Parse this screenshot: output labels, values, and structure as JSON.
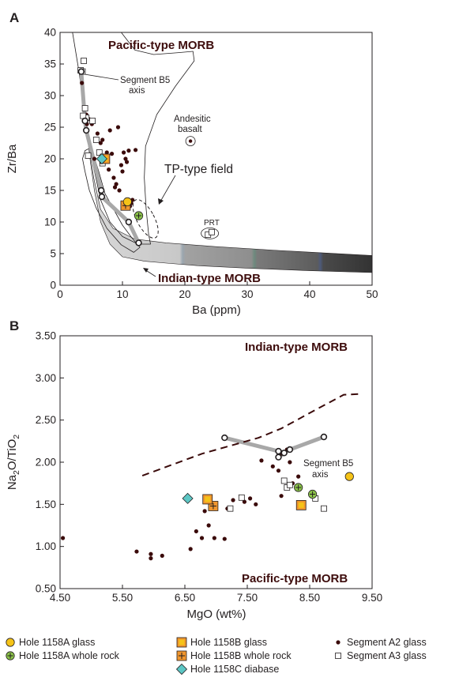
{
  "figure": {
    "panel_a_letter": "A",
    "panel_b_letter": "B"
  },
  "chart_data": [
    {
      "type": "scatter",
      "panel": "A",
      "xlabel": "Ba (ppm)",
      "ylabel": "Zr/Ba",
      "xlim": [
        0,
        50
      ],
      "ylim": [
        0,
        40
      ],
      "xticks": [
        "0",
        "10",
        "20",
        "30",
        "40",
        "50"
      ],
      "yticks": [
        "0",
        "5",
        "10",
        "15",
        "20",
        "25",
        "30",
        "35",
        "40"
      ],
      "grid": false,
      "annotations": {
        "pacific": "Pacific-type MORB",
        "indian": "Indian-type MORB",
        "tp": "TP-type field",
        "andesitic_1": "Andesitic",
        "andesitic_2": "basalt",
        "prt": "PRT",
        "axis_1": "Segment B5",
        "axis_2": "axis"
      },
      "series": [
        {
          "key": "a2",
          "x": [
            3.5,
            4.2,
            4.6,
            5.1,
            5.5,
            6.0,
            6.5,
            7.0,
            7.5,
            7.8,
            8.0,
            8.3,
            8.6,
            9.0,
            9.5,
            9.8,
            10.2,
            10.5,
            10.7,
            11.0,
            11.2,
            11.6,
            12.1,
            8.8,
            10.0,
            9.3,
            6.8,
            11.4,
            4.3,
            7.2
          ],
          "y": [
            32.0,
            27.0,
            26.3,
            25.5,
            20.0,
            24.0,
            22.5,
            20.5,
            21.0,
            18.3,
            24.5,
            20.8,
            17.0,
            16.0,
            15.0,
            19.0,
            21.0,
            20.0,
            19.5,
            21.3,
            12.5,
            13.5,
            21.4,
            15.5,
            18.0,
            25.0,
            23.0,
            13.0,
            25.5,
            19.5
          ]
        },
        {
          "key": "a3",
          "x": [
            3.3,
            3.6,
            3.8,
            4.0,
            4.2,
            4.5,
            5.2,
            5.8,
            6.3,
            6.8,
            3.7,
            23.7,
            24.3
          ],
          "y": [
            34.0,
            33.8,
            35.5,
            28.0,
            26.5,
            20.5,
            26.0,
            23.0,
            21.0,
            19.3,
            26.8,
            8.0,
            8.4
          ]
        },
        {
          "key": "a1158_glass",
          "x": [
            10.8
          ],
          "y": [
            13.2
          ]
        },
        {
          "key": "a1158_wr",
          "x": [
            12.6
          ],
          "y": [
            11.0
          ]
        },
        {
          "key": "b1158_glass",
          "x": [
            7.2
          ],
          "y": [
            20.0
          ]
        },
        {
          "key": "b1158_wr",
          "x": [
            10.5
          ],
          "y": [
            12.6
          ]
        },
        {
          "key": "c1158_db",
          "x": [
            6.7
          ],
          "y": [
            20.0
          ]
        },
        {
          "key": "b5",
          "x": [
            3.4,
            4.0,
            4.2,
            6.6,
            6.7,
            11.0,
            12.6
          ],
          "y": [
            33.8,
            26.0,
            24.5,
            15.0,
            14.0,
            10.0,
            6.7
          ]
        },
        {
          "key": "basalt",
          "x": [
            20.9
          ],
          "y": [
            22.8
          ]
        }
      ]
    },
    {
      "type": "scatter",
      "panel": "B",
      "xlabel": "MgO (wt%)",
      "ylabel_main": "Na",
      "ylabel_sub1": "2",
      "ylabel_mid": "O/TiO",
      "ylabel_sub2": "2",
      "xlim": [
        4.0,
        9.5
      ],
      "ylim": [
        0.5,
        3.5
      ],
      "xticks": [
        "4.50",
        "5.50",
        "6.50",
        "7.50",
        "8.50",
        "9.50"
      ],
      "yticks": [
        "0.50",
        "1.00",
        "1.50",
        "2.00",
        "2.50",
        "3.00",
        "3.50"
      ],
      "grid": false,
      "annotations": {
        "indian": "Indian-type MORB",
        "pacific": "Pacific-type MORB",
        "axis_1": "Segment B5",
        "axis_2": "axis"
      },
      "series": [
        {
          "key": "a2",
          "x": [
            4.05,
            5.35,
            5.6,
            5.6,
            5.8,
            6.3,
            6.4,
            6.5,
            6.55,
            6.7,
            6.62,
            6.72,
            6.95,
            7.05,
            7.25,
            7.35,
            7.45,
            7.55,
            7.75,
            7.85,
            7.9,
            8.0,
            8.05,
            8.2,
            8.1,
            7.9,
            6.9
          ],
          "y": [
            1.1,
            0.94,
            0.91,
            0.86,
            0.89,
            0.97,
            1.18,
            1.1,
            1.42,
            1.46,
            1.25,
            1.1,
            1.45,
            1.55,
            1.53,
            1.57,
            1.5,
            2.02,
            1.95,
            1.9,
            2.1,
            2.15,
            2.0,
            1.83,
            1.75,
            1.6,
            1.09
          ]
        },
        {
          "key": "a3",
          "x": [
            7.2,
            7.0,
            7.95,
            8.0,
            8.05,
            8.5,
            8.65
          ],
          "y": [
            1.58,
            1.45,
            1.78,
            1.7,
            1.73,
            1.57,
            1.45
          ]
        },
        {
          "key": "a1158_glass",
          "x": [
            9.1
          ],
          "y": [
            1.83
          ]
        },
        {
          "key": "a1158_wr",
          "x": [
            8.2,
            8.45
          ],
          "y": [
            1.7,
            1.62
          ]
        },
        {
          "key": "b1158_glass",
          "x": [
            6.6,
            8.25
          ],
          "y": [
            1.56,
            1.49
          ]
        },
        {
          "key": "b1158_wr",
          "x": [
            6.7
          ],
          "y": [
            1.48
          ]
        },
        {
          "key": "c1158_db",
          "x": [
            6.25
          ],
          "y": [
            1.57
          ]
        },
        {
          "key": "b5",
          "x": [
            6.9,
            7.85,
            7.95,
            7.85,
            8.05,
            8.65
          ],
          "y": [
            2.29,
            2.13,
            2.11,
            2.06,
            2.15,
            2.3
          ]
        },
        {
          "key": "boundary",
          "x": [
            5.45,
            6.5,
            7.5,
            7.9,
            8.5,
            9.0,
            9.3
          ],
          "y": [
            1.84,
            2.1,
            2.29,
            2.4,
            2.62,
            2.8,
            2.81
          ]
        }
      ]
    }
  ],
  "legend": [
    {
      "key": "a1158_glass",
      "label": "Hole 1158A glass"
    },
    {
      "key": "a1158_wr",
      "label": "Hole 1158A whole rock"
    },
    {
      "key": "b1158_glass",
      "label": "Hole 1158B glass"
    },
    {
      "key": "b1158_wr",
      "label": "Hole 1158B whole rock"
    },
    {
      "key": "c1158_db",
      "label": "Hole 1158C diabase"
    },
    {
      "key": "a2",
      "label": "Segment A2 glass"
    },
    {
      "key": "a3",
      "label": "Segment A3 glass"
    }
  ],
  "colors": {
    "ink": "#231f20",
    "dot": "#3a0a0a",
    "label_maroon": "#3d0c0c",
    "yellow": "#f5c318",
    "orange": "#f0962e",
    "green": "#8bc34a",
    "cyan": "#5cc6c4",
    "axis_line": "#a8a8a8",
    "field_light": "#d8d8d8",
    "field_dark": "#3a3a3a"
  }
}
